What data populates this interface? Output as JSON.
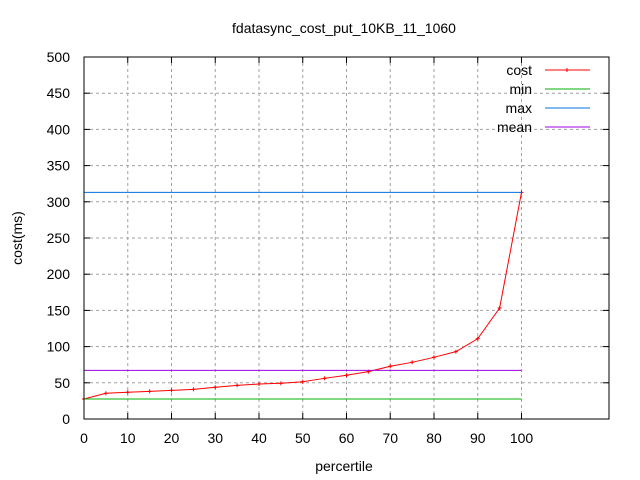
{
  "chart_data": {
    "type": "line",
    "title": "fdatasync_cost_put_10KB_11_1060",
    "xlabel": "percertile",
    "ylabel": "cost(ms)",
    "xlim": [
      0,
      120
    ],
    "ylim": [
      0,
      500
    ],
    "xticks": [
      0,
      10,
      20,
      30,
      40,
      50,
      60,
      70,
      80,
      90,
      100
    ],
    "yticks": [
      0,
      50,
      100,
      150,
      200,
      250,
      300,
      350,
      400,
      450,
      500
    ],
    "grid": true,
    "legend_position": "top-right",
    "x": [
      0,
      5,
      10,
      15,
      20,
      25,
      30,
      35,
      40,
      45,
      50,
      55,
      60,
      65,
      70,
      75,
      80,
      85,
      90,
      95,
      100
    ],
    "series": [
      {
        "name": "cost",
        "color": "#ff0000",
        "marker": "plus",
        "values": [
          27.6,
          35.5,
          37,
          38.2,
          39.6,
          41,
          43.8,
          46.5,
          48.3,
          49.3,
          51.5,
          56.2,
          60.4,
          65.4,
          72.8,
          78.3,
          85.2,
          93,
          111,
          153.3,
          313
        ]
      },
      {
        "name": "min",
        "color": "#00b000",
        "constant": 27.6,
        "x_range": [
          0,
          100
        ]
      },
      {
        "name": "max",
        "color": "#0070e0",
        "constant": 313,
        "x_range": [
          0,
          100
        ]
      },
      {
        "name": "mean",
        "color": "#a000e0",
        "constant": 67.2,
        "x_range": [
          0,
          100
        ]
      }
    ]
  }
}
